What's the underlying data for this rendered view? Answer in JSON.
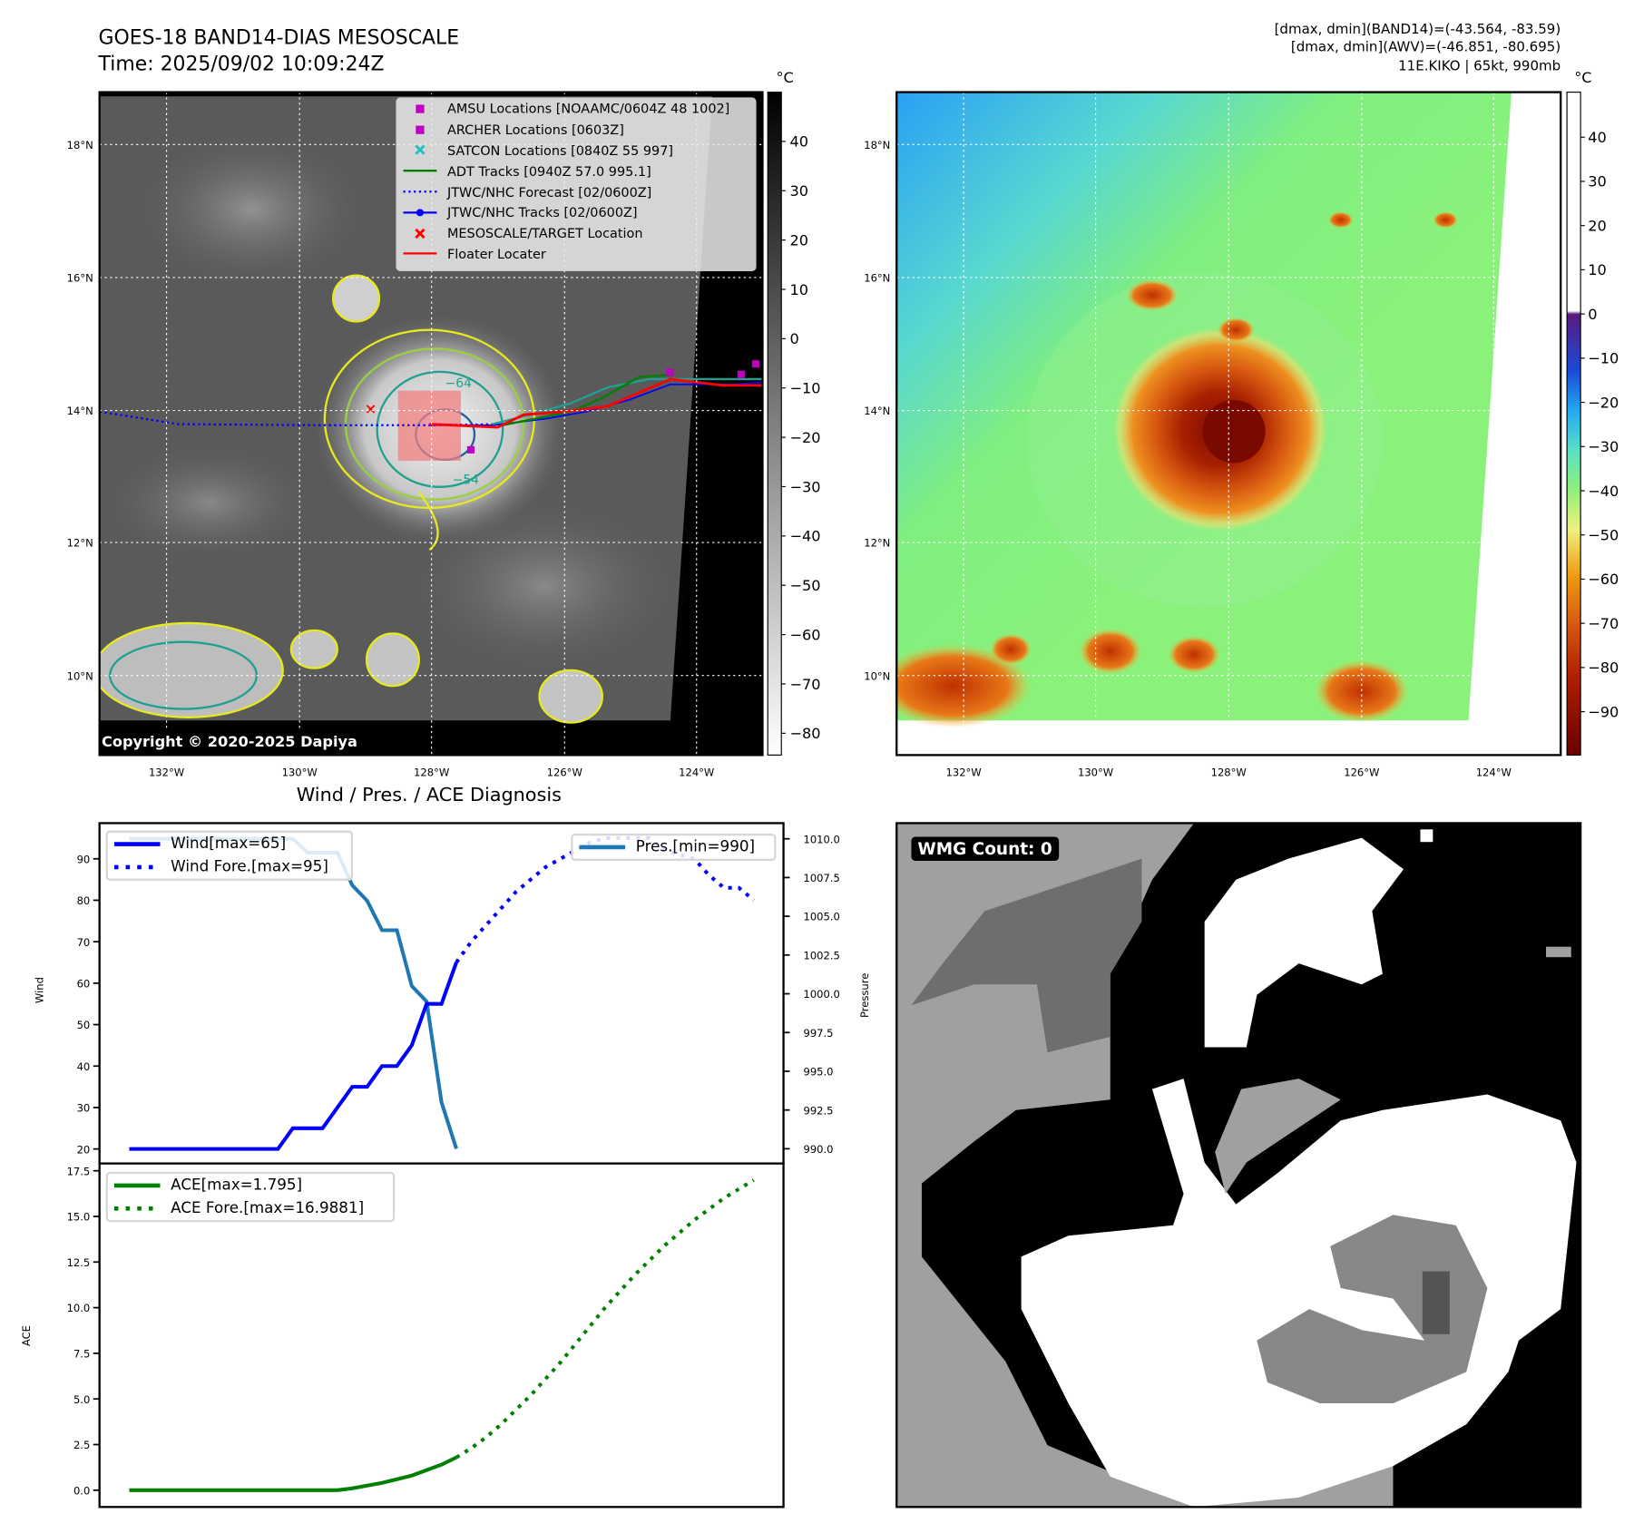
{
  "header": {
    "title": "GOES-18 BAND14-DIAS MESOSCALE",
    "time": "Time: 2025/09/02 10:09:24Z",
    "info_line1": "[dmax, dmin](BAND14)=(-43.564, -83.59)",
    "info_line2": "[dmax, dmin](AWV)=(-46.851, -80.695)",
    "info_line3": "11E.KIKO | 65kt, 990mb"
  },
  "map_left": {
    "unit": "°C",
    "lat_labels": [
      "18°N",
      "16°N",
      "14°N",
      "12°N",
      "10°N"
    ],
    "lon_labels": [
      "132°W",
      "130°W",
      "128°W",
      "126°W",
      "124°W"
    ],
    "colorbar_ticks": [
      "40",
      "30",
      "20",
      "10",
      "0",
      "−10",
      "−20",
      "−30",
      "−40",
      "−50",
      "−60",
      "−70",
      "−80"
    ],
    "copyright": "Copyright © 2020-2025 Dapiya",
    "contour_labels": [
      "−64",
      "−54"
    ],
    "legend": [
      {
        "label": "AMSU Locations [NOAAMC/0604Z 48 1002]",
        "color": "#c000c0",
        "icon": "square-marker-icon"
      },
      {
        "label": "ARCHER Locations [0603Z]",
        "color": "#c000c0",
        "icon": "square-marker-icon"
      },
      {
        "label": "SATCON Locations [0840Z 55 997]",
        "color": "#20c0c0",
        "icon": "x-marker-icon"
      },
      {
        "label": "ADT Tracks [0940Z 57.0 995.1]",
        "color": "#008000",
        "icon": "solid-line-icon"
      },
      {
        "label": "JTWC/NHC Forecast [02/0600Z]",
        "color": "#0000ff",
        "icon": "dotted-line-icon"
      },
      {
        "label": "JTWC/NHC Tracks [02/0600Z]",
        "color": "#0000ff",
        "icon": "line-dot-icon"
      },
      {
        "label": "MESOSCALE/TARGET Location",
        "color": "#ff0000",
        "icon": "x-marker-icon"
      },
      {
        "label": "Floater Locater",
        "color": "#ff0000",
        "icon": "solid-line-icon"
      }
    ]
  },
  "map_right": {
    "unit": "°C",
    "lat_labels": [
      "18°N",
      "16°N",
      "14°N",
      "12°N",
      "10°N"
    ],
    "lon_labels": [
      "132°W",
      "130°W",
      "128°W",
      "126°W",
      "124°W"
    ],
    "colorbar_ticks": [
      "40",
      "30",
      "20",
      "10",
      "0",
      "−10",
      "−20",
      "−30",
      "−40",
      "−50",
      "−60",
      "−70",
      "−80",
      "−90"
    ]
  },
  "wmg": {
    "label": "WMG Count: 0"
  },
  "chart_data": [
    {
      "type": "line",
      "title": "Wind / Pres. / ACE Diagnosis",
      "ylabel": "Wind",
      "y2label": "Pressure",
      "xlim": [
        -2,
        44
      ],
      "ylim": [
        16.5,
        98.6
      ],
      "y2lim": [
        989.05,
        1011.01
      ],
      "yticks": [
        20,
        30,
        40,
        50,
        60,
        70,
        80,
        90
      ],
      "y2ticks": [
        "990.0",
        "992.5",
        "995.0",
        "997.5",
        "1000.0",
        "1002.5",
        "1005.0",
        "1007.5",
        "1010.0"
      ],
      "series": [
        {
          "name": "Wind[max=65]",
          "axis": "left",
          "style": "solid",
          "color": "#0000ff",
          "x": [
            0,
            1,
            2,
            3,
            4,
            5,
            6,
            7,
            8,
            9,
            10,
            11,
            12,
            13,
            14,
            15,
            16,
            17,
            18,
            19,
            20,
            21,
            22
          ],
          "y": [
            20,
            20,
            20,
            20,
            20,
            20,
            20,
            20,
            20,
            20,
            20,
            25,
            25,
            25,
            30,
            35,
            35,
            40,
            40,
            45,
            55,
            55,
            65
          ]
        },
        {
          "name": "Wind Fore.[max=95]",
          "axis": "left",
          "style": "dotted",
          "color": "#0000ff",
          "x": [
            22,
            23,
            24,
            25,
            26,
            27,
            28,
            29,
            30,
            31,
            32,
            33,
            34,
            35,
            36,
            37,
            38,
            39,
            40,
            41,
            42
          ],
          "y": [
            65,
            70,
            74,
            78,
            82,
            85,
            88,
            90,
            92,
            94,
            95,
            95,
            95,
            95,
            92,
            91,
            90,
            86,
            83,
            83,
            80
          ]
        },
        {
          "name": "Pres.[min=990]",
          "axis": "right",
          "style": "solid",
          "color": "#1f77b4",
          "x": [
            0,
            1,
            2,
            3,
            4,
            5,
            6,
            7,
            8,
            9,
            10,
            11,
            12,
            13,
            14,
            15,
            16,
            17,
            18,
            19,
            20,
            21,
            22
          ],
          "y": [
            1010,
            1010,
            1010,
            1010,
            1010,
            1010,
            1010,
            1010,
            1010,
            1010,
            1010,
            1010,
            1009.1,
            1009.1,
            1009.1,
            1007,
            1006,
            1004.1,
            1004.1,
            1000.5,
            999.5,
            993,
            990
          ]
        }
      ],
      "legend_left": [
        "Wind[max=65]",
        "Wind Fore.[max=95]"
      ],
      "legend_right": [
        "Pres.[min=990]"
      ]
    },
    {
      "type": "line",
      "ylabel": "ACE",
      "xlim": [
        -2,
        44
      ],
      "ylim": [
        -0.92,
        17.9
      ],
      "yticks": [
        "0.0",
        "2.5",
        "5.0",
        "7.5",
        "10.0",
        "12.5",
        "15.0",
        "17.5"
      ],
      "series": [
        {
          "name": "ACE[max=1.795]",
          "style": "solid",
          "color": "#008000",
          "x": [
            0,
            1,
            2,
            3,
            4,
            5,
            6,
            7,
            8,
            9,
            10,
            11,
            12,
            13,
            14,
            15,
            16,
            17,
            18,
            19,
            20,
            21,
            22
          ],
          "y": [
            0,
            0,
            0,
            0,
            0,
            0,
            0,
            0,
            0,
            0,
            0,
            0,
            0,
            0,
            0,
            0.1,
            0.25,
            0.4,
            0.6,
            0.8,
            1.1,
            1.4,
            1.795
          ]
        },
        {
          "name": "ACE Fore.[max=16.9881]",
          "style": "dotted",
          "color": "#008000",
          "x": [
            22,
            23,
            24,
            25,
            26,
            27,
            28,
            29,
            30,
            31,
            32,
            33,
            34,
            35,
            36,
            37,
            38,
            39,
            40,
            41,
            42
          ],
          "y": [
            1.795,
            2.3,
            2.9,
            3.6,
            4.4,
            5.2,
            6.1,
            7.0,
            8.0,
            9.0,
            10.0,
            10.9,
            11.8,
            12.6,
            13.4,
            14.1,
            14.8,
            15.4,
            16.0,
            16.5,
            16.9881
          ]
        }
      ]
    }
  ]
}
